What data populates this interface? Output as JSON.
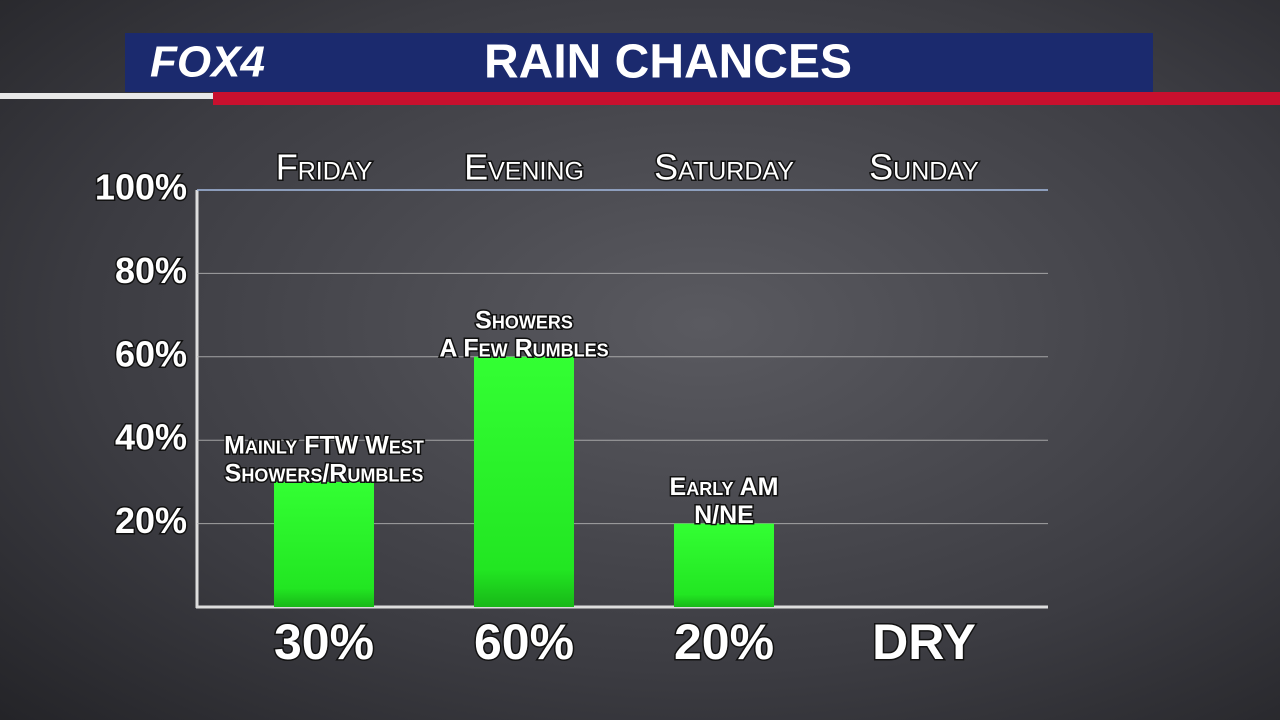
{
  "brand": "FOX4",
  "chart_data": {
    "type": "bar",
    "title": "RAIN CHANCES",
    "categories": [
      "Friday",
      "Evening",
      "Saturday",
      "Sunday"
    ],
    "values": [
      30,
      60,
      20,
      null
    ],
    "value_labels": [
      "30%",
      "60%",
      "20%",
      "DRY"
    ],
    "annotations": [
      [
        "Mainly FTW West",
        "Showers/Rumbles"
      ],
      [
        "Showers",
        "A Few Rumbles"
      ],
      [
        "Early AM",
        "N/NE"
      ],
      null
    ],
    "color": "#2bf02b",
    "ylim": [
      0,
      100
    ],
    "yticks": [
      {
        "value": 20,
        "label": "20%"
      },
      {
        "value": 40,
        "label": "40%"
      },
      {
        "value": 60,
        "label": "60%"
      },
      {
        "value": 80,
        "label": "80%"
      },
      {
        "value": 100,
        "label": "100%"
      }
    ],
    "grid": true
  }
}
